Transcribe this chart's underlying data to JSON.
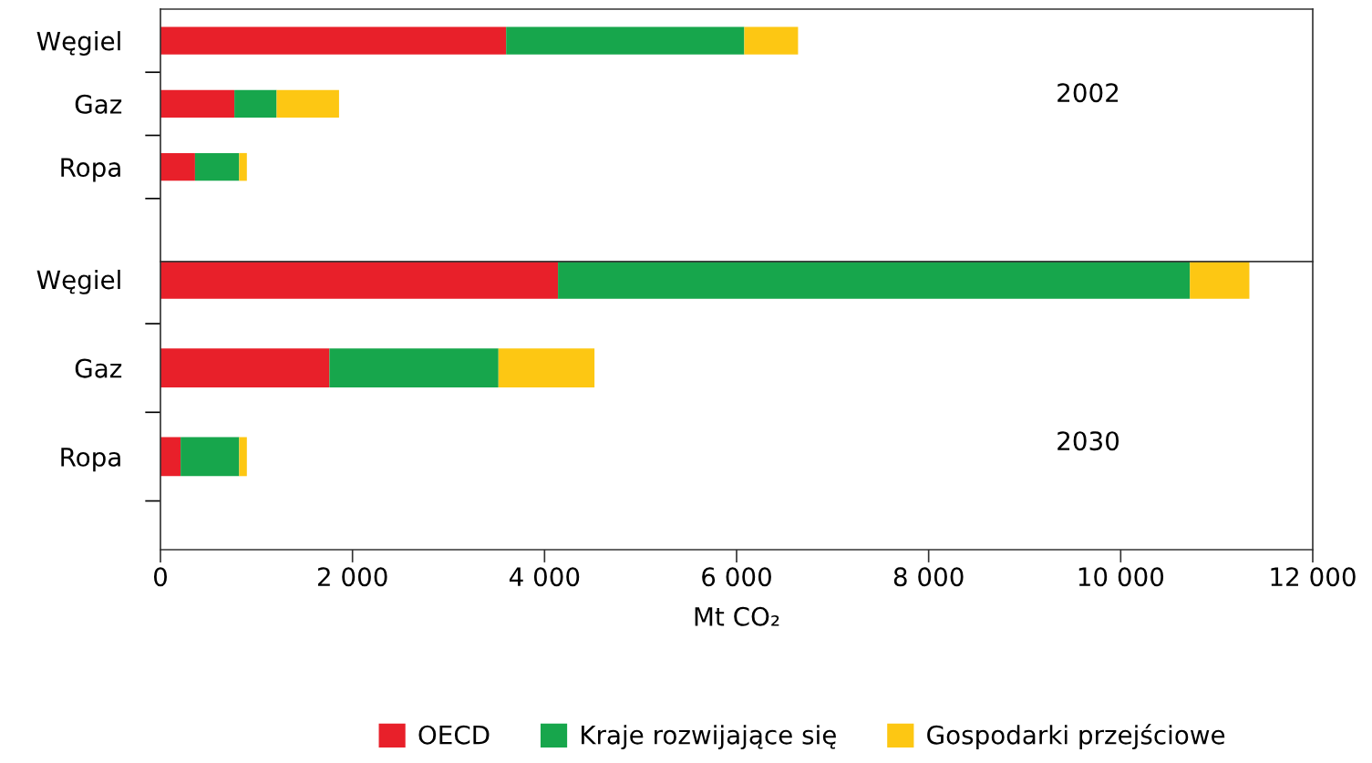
{
  "chart_data": [
    {
      "type": "bar",
      "orientation": "horizontal",
      "stacked": true,
      "categories": [
        "Węgiel",
        "Gaz",
        "Ropa"
      ],
      "series": [
        {
          "color": "#e8202a",
          "values": [
            3600,
            770,
            360
          ]
        },
        {
          "color": "#17a64c",
          "values": [
            2480,
            440,
            460
          ]
        },
        {
          "color": "#fdc713",
          "values": [
            560,
            650,
            80
          ]
        }
      ],
      "xlim": [
        0,
        12000
      ],
      "tick_labels": "y",
      "annotations": [
        "2002"
      ]
    },
    {
      "type": "bar",
      "orientation": "horizontal",
      "stacked": true,
      "categories": [
        "Węgiel",
        "Gaz",
        "Ropa"
      ],
      "series": [
        {
          "name": "OECD",
          "color": "#e8202a",
          "values": [
            4140,
            1760,
            210
          ]
        },
        {
          "name": "Kraje rozwijające się",
          "color": "#17a64c",
          "values": [
            6580,
            1760,
            610
          ]
        },
        {
          "name": "Gospodarki przejściowe",
          "color": "#fdc713",
          "values": [
            620,
            1000,
            80
          ]
        }
      ],
      "xlim": [
        0,
        12000
      ],
      "xticks": [
        0,
        {
          "value": 2000,
          "label": "2 000"
        },
        {
          "value": 4000,
          "label": "4 000"
        },
        {
          "value": 6000,
          "label": "6 000"
        },
        {
          "value": 8000,
          "label": "8 000"
        },
        {
          "value": 10000,
          "label": "10 000"
        },
        {
          "value": 12000,
          "label": "12 000"
        }
      ],
      "xlabel": "Mt CO₂",
      "legend": "bottom",
      "annotations": [
        "2030"
      ]
    }
  ]
}
